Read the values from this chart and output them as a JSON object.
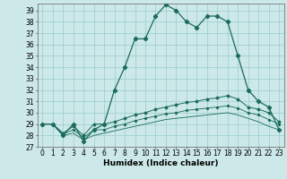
{
  "xlabel": "Humidex (Indice chaleur)",
  "bg_color": "#cce8e8",
  "grid_color": "#99cccc",
  "line_color": "#1a6b5a",
  "xlim": [
    -0.5,
    23.5
  ],
  "ylim": [
    27,
    39.6
  ],
  "yticks": [
    27,
    28,
    29,
    30,
    31,
    32,
    33,
    34,
    35,
    36,
    37,
    38,
    39
  ],
  "xticks": [
    0,
    1,
    2,
    3,
    4,
    5,
    6,
    7,
    8,
    9,
    10,
    11,
    12,
    13,
    14,
    15,
    16,
    17,
    18,
    19,
    20,
    21,
    22,
    23
  ],
  "series_main": [
    29,
    29,
    28,
    29,
    27.5,
    28.5,
    29,
    32,
    34,
    36.5,
    36.5,
    38.5,
    39.5,
    39,
    38,
    37.5,
    38.5,
    38.5,
    38,
    35,
    32,
    31,
    30.5,
    28.5
  ],
  "series_line2": [
    29,
    29,
    28.2,
    28.8,
    28,
    29,
    29,
    29.2,
    29.5,
    29.8,
    30.0,
    30.3,
    30.5,
    30.7,
    30.9,
    31.0,
    31.2,
    31.3,
    31.5,
    31.2,
    30.5,
    30.3,
    30.0,
    29.2
  ],
  "series_line3": [
    29,
    29,
    28.1,
    28.5,
    27.8,
    28.5,
    28.5,
    28.8,
    29.0,
    29.3,
    29.5,
    29.7,
    29.9,
    30.0,
    30.2,
    30.3,
    30.4,
    30.5,
    30.6,
    30.4,
    30.0,
    29.8,
    29.4,
    29.0
  ],
  "series_line4": [
    29,
    29,
    28.0,
    28.2,
    27.6,
    28.0,
    28.2,
    28.4,
    28.6,
    28.8,
    29.0,
    29.2,
    29.4,
    29.5,
    29.6,
    29.7,
    29.8,
    29.9,
    30.0,
    29.8,
    29.5,
    29.2,
    28.8,
    28.5
  ],
  "xlabel_fontsize": 6.5,
  "tick_fontsize": 5.5
}
